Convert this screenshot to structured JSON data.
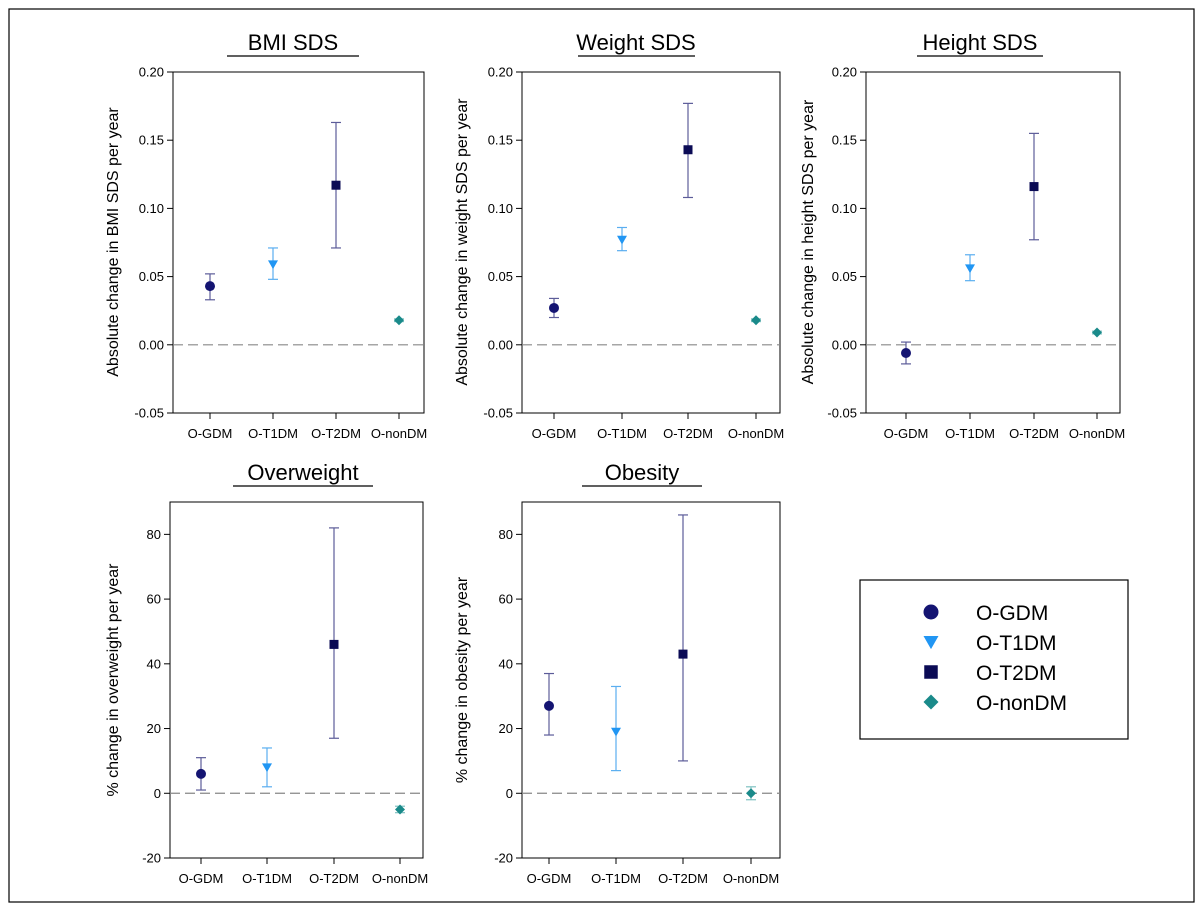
{
  "colors": {
    "O-GDM": "#141472",
    "O-T1DM": "#2196f3",
    "O-T2DM": "#0b0b55",
    "O-nonDM": "#1a8a8a",
    "err_dark": "#5c5c99",
    "err_light": "#5aaef0",
    "err_teal": "#7ec1c1",
    "zero_line": "#888888"
  },
  "legend": {
    "items": [
      {
        "label": "O-GDM",
        "marker": "circle"
      },
      {
        "label": "O-T1DM",
        "marker": "triangle-down"
      },
      {
        "label": "O-T2DM",
        "marker": "square"
      },
      {
        "label": "O-nonDM",
        "marker": "diamond"
      }
    ]
  },
  "chart_data": [
    {
      "type": "scatter",
      "title": "BMI SDS",
      "ylabel": "Absolute change in BMI SDS per year",
      "categories": [
        "O-GDM",
        "O-T1DM",
        "O-T2DM",
        "O-nonDM"
      ],
      "ylim": [
        -0.05,
        0.2
      ],
      "yticks": [
        "-0.05",
        "0.00",
        "0.05",
        "0.10",
        "0.15",
        "0.20"
      ],
      "values": [
        0.043,
        0.059,
        0.117,
        0.018
      ],
      "err_low": [
        0.033,
        0.048,
        0.071,
        0.017
      ],
      "err_high": [
        0.052,
        0.071,
        0.163,
        0.019
      ],
      "zero_line": 0
    },
    {
      "type": "scatter",
      "title": "Weight SDS",
      "ylabel": "Absolute change in weight SDS per year",
      "categories": [
        "O-GDM",
        "O-T1DM",
        "O-T2DM",
        "O-nonDM"
      ],
      "ylim": [
        -0.05,
        0.2
      ],
      "yticks": [
        "-0.05",
        "0.00",
        "0.05",
        "0.10",
        "0.15",
        "0.20"
      ],
      "values": [
        0.027,
        0.077,
        0.143,
        0.018
      ],
      "err_low": [
        0.02,
        0.069,
        0.108,
        0.017
      ],
      "err_high": [
        0.034,
        0.086,
        0.177,
        0.019
      ],
      "zero_line": 0
    },
    {
      "type": "scatter",
      "title": "Height SDS",
      "ylabel": "Absolute change in height SDS per year",
      "categories": [
        "O-GDM",
        "O-T1DM",
        "O-T2DM",
        "O-nonDM"
      ],
      "ylim": [
        -0.05,
        0.2
      ],
      "yticks": [
        "-0.05",
        "0.00",
        "0.05",
        "0.10",
        "0.15",
        "0.20"
      ],
      "values": [
        -0.006,
        0.056,
        0.116,
        0.009
      ],
      "err_low": [
        -0.014,
        0.047,
        0.077,
        0.008
      ],
      "err_high": [
        0.002,
        0.066,
        0.155,
        0.01
      ],
      "zero_line": 0
    },
    {
      "type": "scatter",
      "title": "Overweight",
      "ylabel": "% change in overweight per year",
      "categories": [
        "O-GDM",
        "O-T1DM",
        "O-T2DM",
        "O-nonDM"
      ],
      "ylim": [
        -20,
        90
      ],
      "yticks": [
        "-20",
        "0",
        "20",
        "40",
        "60",
        "80"
      ],
      "values": [
        6,
        8,
        46,
        -5
      ],
      "err_low": [
        1,
        2,
        17,
        -6
      ],
      "err_high": [
        11,
        14,
        82,
        -4
      ],
      "zero_line": 0
    },
    {
      "type": "scatter",
      "title": "Obesity",
      "ylabel": "% change in obesity per year",
      "categories": [
        "O-GDM",
        "O-T1DM",
        "O-T2DM",
        "O-nonDM"
      ],
      "ylim": [
        -20,
        90
      ],
      "yticks": [
        "-20",
        "0",
        "20",
        "40",
        "60",
        "80"
      ],
      "values": [
        27,
        19,
        43,
        0
      ],
      "err_low": [
        18,
        7,
        10,
        -2
      ],
      "err_high": [
        37,
        33,
        86,
        2
      ],
      "zero_line": 0
    }
  ]
}
